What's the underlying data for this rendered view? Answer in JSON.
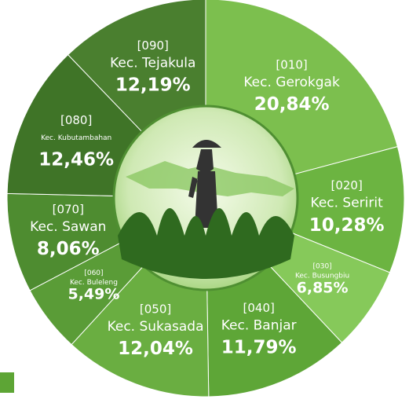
{
  "chart_data": {
    "type": "donut",
    "codes": [
      "[010]",
      "[020]",
      "[030]",
      "[040]",
      "[050]",
      "[060]",
      "[070]",
      "[080]",
      "[090]"
    ],
    "categories": [
      "Kec. Gerokgak",
      "Kec. Seririt",
      "Kec. Busungbiu",
      "Kec. Banjar",
      "Kec. Sukasada",
      "Kec. Buleleng",
      "Kec. Sawan",
      "Kec. Kubutambahan",
      "Kec. Tejakula"
    ],
    "values": [
      20.84,
      10.28,
      6.85,
      11.79,
      12.04,
      5.49,
      8.06,
      12.46,
      12.19
    ],
    "value_labels": [
      "20,84%",
      "10,28%",
      "6,85%",
      "11,79%",
      "12,04%",
      "5,49%",
      "8,06%",
      "12,46%",
      "12,19%"
    ],
    "colors": [
      "#7cbf4e",
      "#6cb441",
      "#86c95a",
      "#5ea637",
      "#6aae41",
      "#5a9c37",
      "#4e8c30",
      "#3f7427",
      "#4a7f2f"
    ]
  }
}
